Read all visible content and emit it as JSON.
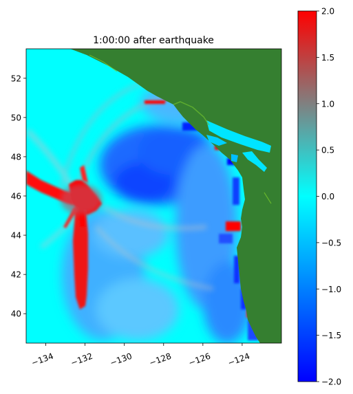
{
  "title": "1:00:00 after earthquake",
  "map": {
    "lon_range": [
      -135.0,
      -122.0
    ],
    "lat_range": [
      38.5,
      53.5
    ],
    "land_color": "#357f30",
    "ocean_base_color": "#00ffff",
    "x_ticks": [
      {
        "value": -134,
        "label": "−134"
      },
      {
        "value": -132,
        "label": "−132"
      },
      {
        "value": -130,
        "label": "−130"
      },
      {
        "value": -128,
        "label": "−128"
      },
      {
        "value": -126,
        "label": "−126"
      },
      {
        "value": -124,
        "label": "−124"
      }
    ],
    "y_ticks": [
      {
        "value": 40,
        "label": "40"
      },
      {
        "value": 42,
        "label": "42"
      },
      {
        "value": 44,
        "label": "44"
      },
      {
        "value": 46,
        "label": "46"
      },
      {
        "value": 48,
        "label": "48"
      },
      {
        "value": 50,
        "label": "50"
      },
      {
        "value": 52,
        "label": "52"
      }
    ]
  },
  "colorbar": {
    "range": [
      -2.0,
      2.0
    ],
    "colors": [
      "#0000ff",
      "#00ffff",
      "#808080",
      "#ff0000"
    ],
    "ticks": [
      {
        "value": 2.0,
        "label": "2.0"
      },
      {
        "value": 1.5,
        "label": "1.5"
      },
      {
        "value": 1.0,
        "label": "1.0"
      },
      {
        "value": 0.5,
        "label": "0.5"
      },
      {
        "value": 0.0,
        "label": "0.0"
      },
      {
        "value": -0.5,
        "label": "−0.5"
      },
      {
        "value": -1.0,
        "label": "−1.0"
      },
      {
        "value": -1.5,
        "label": "−1.5"
      },
      {
        "value": -2.0,
        "label": "−2.0"
      }
    ]
  }
}
